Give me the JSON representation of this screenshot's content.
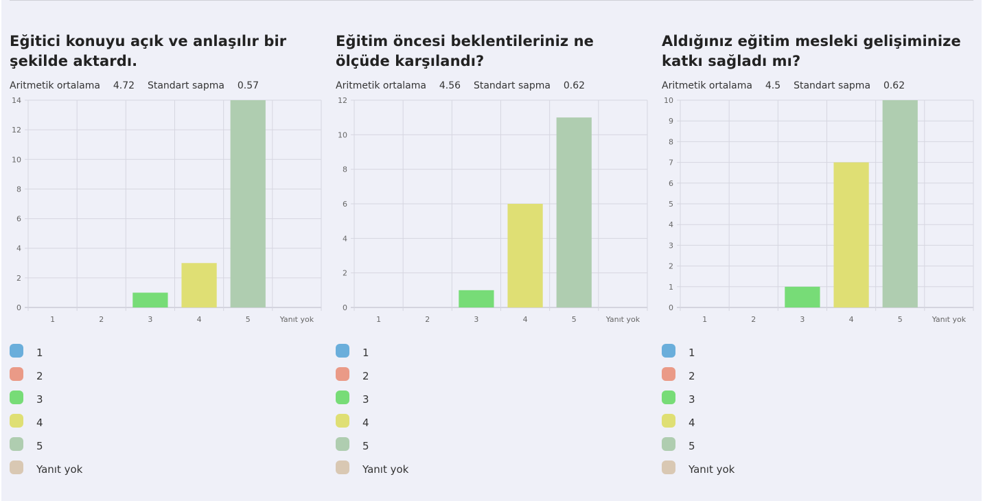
{
  "colors": {
    "opt1": "#6aaedb",
    "opt2": "#ea9a87",
    "opt3": "#77dc77",
    "opt4": "#dfdf74",
    "opt5": "#afcdb0",
    "no_answer": "#d9c8b3"
  },
  "legend_labels": [
    "1",
    "2",
    "3",
    "4",
    "5",
    "Yanıt yok"
  ],
  "panels": [
    {
      "title": "Eğitici konuyu açık ve anlaşılır bir şekilde aktardı.",
      "mean_label": "Aritmetik ortalama",
      "mean_value": "4.72",
      "sd_label": "Standart sapma",
      "sd_value": "0.57"
    },
    {
      "title": "Eğitim öncesi beklentileriniz ne ölçüde karşılandı?",
      "mean_label": "Aritmetik ortalama",
      "mean_value": "4.56",
      "sd_label": "Standart sapma",
      "sd_value": "0.62"
    },
    {
      "title": "Aldığınız eğitim mesleki gelişiminize katkı sağladı mı?",
      "mean_label": "Aritmetik ortalama",
      "mean_value": "4.5",
      "sd_label": "Standart sapma",
      "sd_value": "0.62"
    }
  ],
  "chart_data": [
    {
      "type": "bar",
      "categories": [
        "1",
        "2",
        "3",
        "4",
        "5",
        "Yanıt yok"
      ],
      "values": [
        0,
        0,
        1,
        3,
        14,
        0
      ],
      "ylim": [
        0,
        14
      ],
      "yticks": [
        0,
        2,
        4,
        6,
        8,
        10,
        12,
        14
      ],
      "grid": true
    },
    {
      "type": "bar",
      "categories": [
        "1",
        "2",
        "3",
        "4",
        "5",
        "Yanıt yok"
      ],
      "values": [
        0,
        0,
        1,
        6,
        11,
        0
      ],
      "ylim": [
        0,
        12
      ],
      "yticks": [
        0,
        2,
        4,
        6,
        8,
        10,
        12
      ],
      "grid": true
    },
    {
      "type": "bar",
      "categories": [
        "1",
        "2",
        "3",
        "4",
        "5",
        "Yanıt yok"
      ],
      "values": [
        0,
        0,
        1,
        7,
        10,
        0
      ],
      "ylim": [
        0,
        10
      ],
      "yticks": [
        0,
        1,
        2,
        3,
        4,
        5,
        6,
        7,
        8,
        9,
        10
      ],
      "grid": true
    }
  ]
}
